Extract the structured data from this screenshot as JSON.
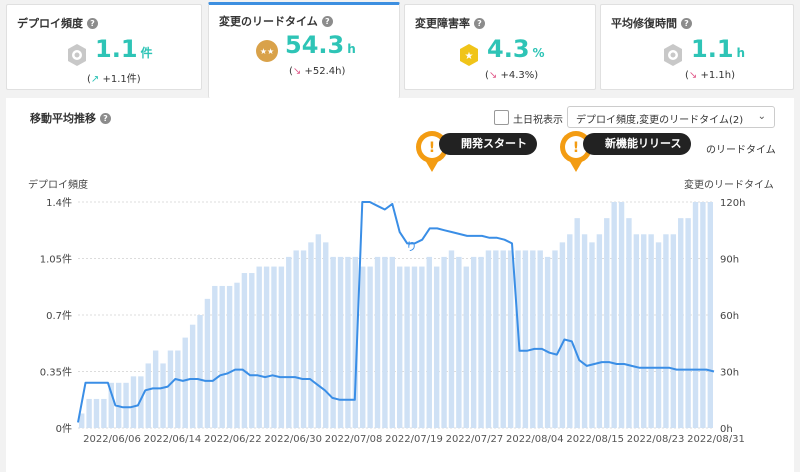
{
  "cards": [
    {
      "title": "デプロイ頻度",
      "value": "1.1",
      "unit": "件",
      "arrow": "↗",
      "delta": "+1.1件",
      "medal": "silver-medal-icon",
      "trend": "up"
    },
    {
      "title": "変更のリードタイム",
      "value": "54.3",
      "unit": "h",
      "arrow": "↘",
      "delta": "+52.4h",
      "medal": "bronze-medal-icon",
      "trend": "down"
    },
    {
      "title": "変更障害率",
      "value": "4.3",
      "unit": "%",
      "arrow": "↘",
      "delta": "+4.3%",
      "medal": "gold-medal-icon",
      "trend": "down"
    },
    {
      "title": "平均修復時間",
      "value": "1.1",
      "unit": "h",
      "arrow": "↘",
      "delta": "+1.1h",
      "medal": "silver-medal-icon",
      "trend": "down"
    }
  ],
  "panel": {
    "title": "移動平均推移",
    "weekend_label": "土日祝表示",
    "select_value": "デプロイ頻度,変更のリードタイム(2)",
    "legend_fragment": "のリードタイム"
  },
  "annotations": [
    {
      "label": "開発スタート"
    },
    {
      "label": "新機能リリース"
    }
  ],
  "chart_data": {
    "type": "bar",
    "left_axis": {
      "label": "デプロイ頻度",
      "ticks": [
        "0件",
        "0.35件",
        "0.7件",
        "1.05件",
        "1.4件"
      ],
      "range": [
        0,
        1.4
      ]
    },
    "right_axis": {
      "label": "変更のリードタイム",
      "ticks": [
        "0h",
        "30h",
        "60h",
        "90h",
        "120h"
      ],
      "range": [
        0,
        120
      ]
    },
    "x_labels": [
      "2022/06/06",
      "2022/06/14",
      "2022/06/22",
      "2022/06/30",
      "2022/07/08",
      "2022/07/19",
      "2022/07/27",
      "2022/08/04",
      "2022/08/15",
      "2022/08/23",
      "2022/08/31"
    ],
    "stray_label": "り",
    "bar_color": "#cfe1f5",
    "line_color": "#3a8ee6",
    "series": [
      {
        "name": "デプロイ頻度",
        "kind": "bar",
        "values": [
          0.09,
          0.18,
          0.18,
          0.18,
          0.28,
          0.28,
          0.28,
          0.32,
          0.32,
          0.4,
          0.48,
          0.4,
          0.48,
          0.48,
          0.56,
          0.64,
          0.7,
          0.8,
          0.88,
          0.88,
          0.88,
          0.9,
          0.96,
          0.96,
          1.0,
          1.0,
          1.0,
          1.0,
          1.06,
          1.1,
          1.1,
          1.15,
          1.2,
          1.15,
          1.06,
          1.06,
          1.06,
          1.06,
          1.0,
          1.0,
          1.06,
          1.06,
          1.06,
          1.0,
          1.0,
          1.0,
          1.0,
          1.06,
          1.0,
          1.06,
          1.1,
          1.06,
          1.0,
          1.06,
          1.06,
          1.1,
          1.1,
          1.1,
          1.1,
          1.1,
          1.1,
          1.1,
          1.1,
          1.06,
          1.1,
          1.15,
          1.2,
          1.3,
          1.2,
          1.15,
          1.2,
          1.3,
          1.4,
          1.4,
          1.3,
          1.2,
          1.2,
          1.2,
          1.15,
          1.2,
          1.2,
          1.3,
          1.3,
          1.4,
          1.4,
          1.4
        ]
      },
      {
        "name": "変更のリードタイム",
        "kind": "line",
        "x": [
          0,
          1,
          2,
          3,
          4,
          5,
          6,
          7,
          8,
          9,
          10,
          11,
          12,
          13,
          14,
          15,
          16,
          17,
          18,
          19,
          20,
          21,
          22,
          23,
          24,
          25,
          26,
          27,
          28,
          29,
          30,
          31,
          32,
          33,
          34,
          35,
          36,
          37,
          38,
          39,
          40,
          41,
          42,
          43,
          44,
          45,
          46,
          47,
          48,
          49,
          50,
          51,
          52,
          53,
          54,
          55,
          56,
          57,
          58,
          59,
          60,
          61,
          62,
          63,
          64,
          65,
          66,
          67,
          68,
          69,
          70,
          71,
          72,
          73,
          74,
          75,
          76,
          77,
          78,
          79,
          80,
          81,
          82,
          83,
          84,
          85
        ],
        "values": [
          3,
          24,
          24,
          24,
          24,
          12,
          11,
          11,
          12,
          20,
          21,
          21,
          22,
          26,
          25,
          26,
          26,
          25,
          25,
          28,
          29,
          31,
          31,
          28,
          28,
          27,
          28,
          27,
          27,
          27,
          26,
          26,
          23,
          20,
          16,
          15,
          15,
          15,
          120,
          120,
          118,
          116,
          119,
          104,
          98,
          98,
          100,
          106,
          106,
          105,
          104,
          103,
          102,
          102,
          102,
          101,
          101,
          100,
          98,
          41,
          41,
          42,
          42,
          40,
          39,
          47,
          46,
          36,
          33,
          34,
          35,
          35,
          34,
          34,
          33,
          32,
          32,
          32,
          32,
          32,
          31,
          31,
          31,
          31,
          31,
          30
        ]
      }
    ]
  }
}
